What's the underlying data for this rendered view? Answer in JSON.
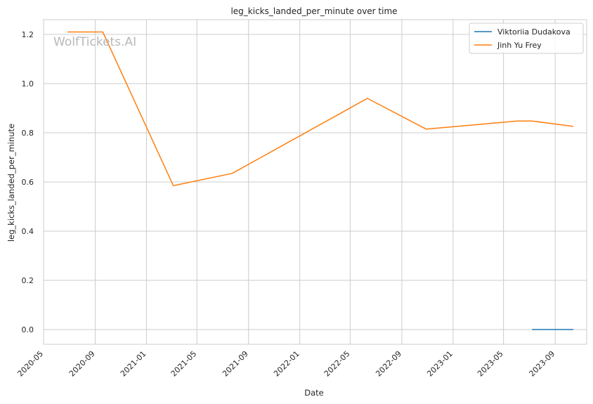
{
  "watermark": "WolfTickets.AI",
  "chart_data": {
    "type": "line",
    "title": "leg_kicks_landed_per_minute over time",
    "xlabel": "Date",
    "ylabel": "leg_kicks_landed_per_minute",
    "xlim": [
      "2020-05-01",
      "2023-11-15"
    ],
    "ylim": [
      -0.06,
      1.26
    ],
    "grid": true,
    "legend_position": "top-right",
    "x_ticks": [
      "2020-05",
      "2020-09",
      "2021-01",
      "2021-05",
      "2021-09",
      "2022-01",
      "2022-05",
      "2022-09",
      "2023-01",
      "2023-05",
      "2023-09"
    ],
    "y_ticks": [
      "0.0",
      "0.2",
      "0.4",
      "0.6",
      "0.8",
      "1.0",
      "1.2"
    ],
    "series": [
      {
        "name": "Viktoriia Dudakova",
        "color": "#1f77b4",
        "points": [
          {
            "x": "2023-07-08",
            "y": 0.0
          },
          {
            "x": "2023-10-14",
            "y": 0.0
          }
        ]
      },
      {
        "name": "Jinh Yu Frey",
        "color": "#ff7f0e",
        "points": [
          {
            "x": "2020-06-27",
            "y": 1.21
          },
          {
            "x": "2020-09-19",
            "y": 1.21
          },
          {
            "x": "2021-03-06",
            "y": 0.585
          },
          {
            "x": "2021-07-24",
            "y": 0.635
          },
          {
            "x": "2022-06-11",
            "y": 0.94
          },
          {
            "x": "2022-10-29",
            "y": 0.815
          },
          {
            "x": "2023-06-03",
            "y": 0.848
          },
          {
            "x": "2023-07-08",
            "y": 0.848
          },
          {
            "x": "2023-10-14",
            "y": 0.826
          }
        ]
      }
    ]
  }
}
